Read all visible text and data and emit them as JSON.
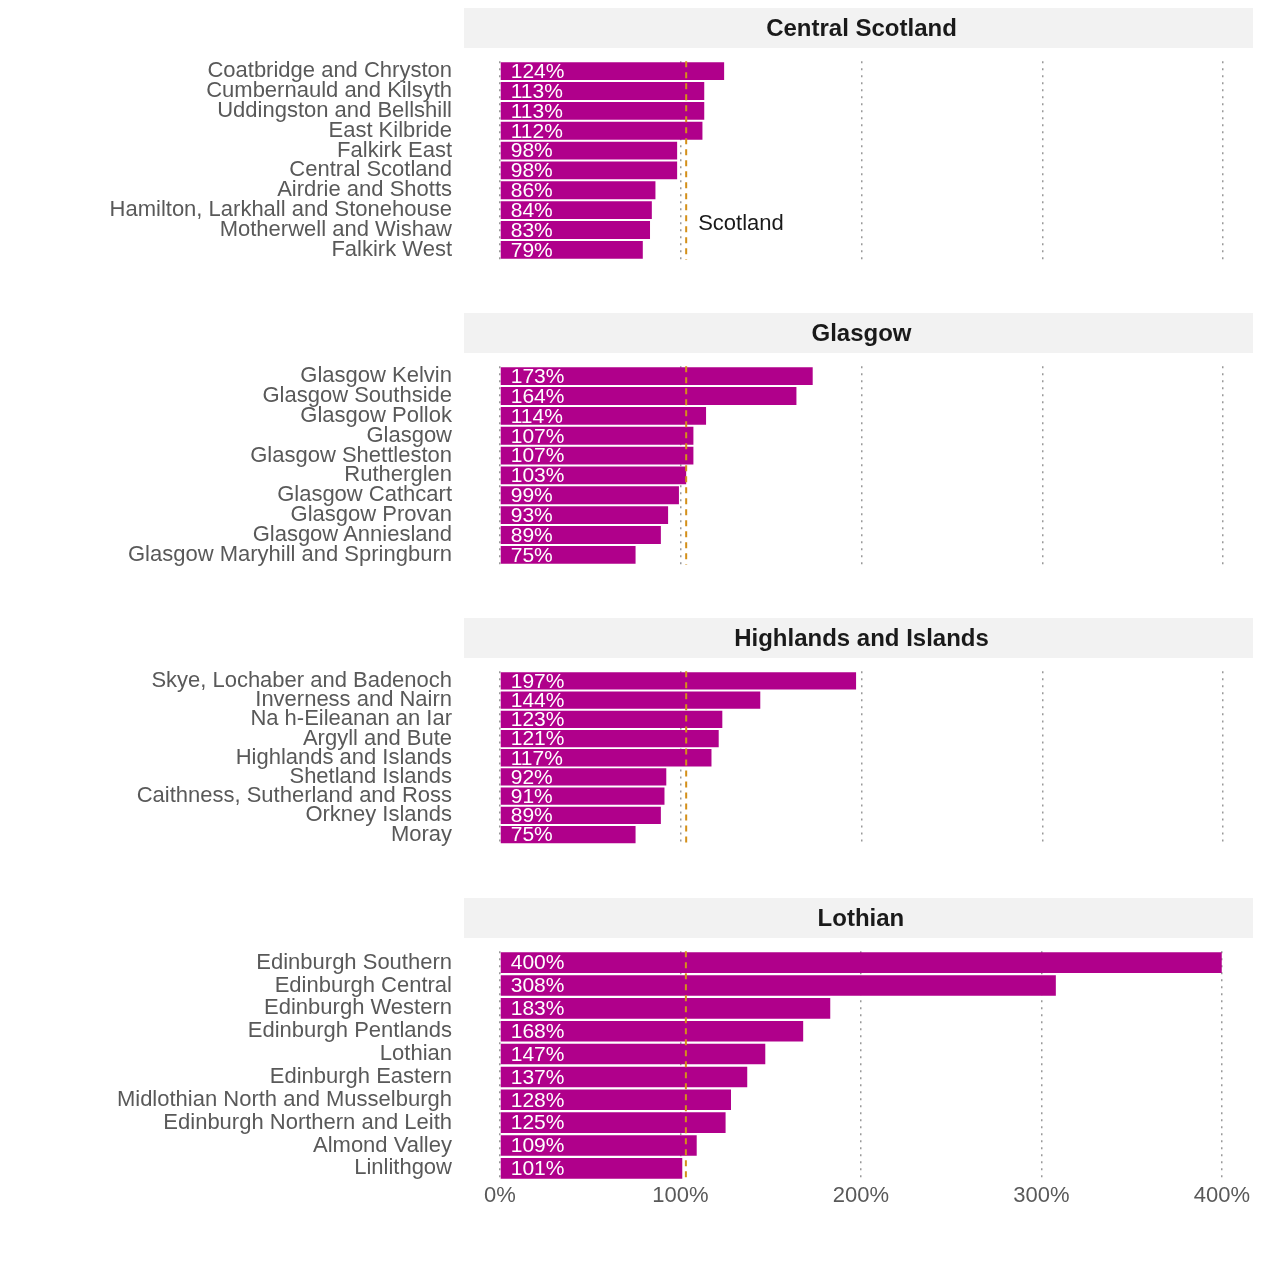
{
  "chart_data": [
    {
      "type": "bar",
      "orientation": "horizontal",
      "title": "Central Scotland",
      "categories": [
        "Coatbridge and Chryston",
        "Cumbernauld and Kilsyth",
        "Uddingston and Bellshill",
        "East Kilbride",
        "Falkirk East",
        "Central Scotland",
        "Airdrie and Shotts",
        "Hamilton, Larkhall and Stonehouse",
        "Motherwell and Wishaw",
        "Falkirk West"
      ],
      "values": [
        124,
        113,
        113,
        112,
        98,
        98,
        86,
        84,
        83,
        79
      ],
      "value_labels": [
        "124%",
        "113%",
        "113%",
        "112%",
        "98%",
        "98%",
        "86%",
        "84%",
        "83%",
        "79%"
      ],
      "color": "#b0008b",
      "xlim": [
        0,
        400
      ],
      "xticks": [
        0,
        100,
        200,
        300,
        400
      ],
      "grid": "x",
      "tick_labels": "y",
      "legend": false,
      "ref_lines": [
        {
          "axis": "x",
          "value": 103,
          "label": "Scotland",
          "color": "#d4901a",
          "line_style": "dashed"
        }
      ]
    },
    {
      "type": "bar",
      "orientation": "horizontal",
      "title": "Glasgow",
      "categories": [
        "Glasgow Kelvin",
        "Glasgow Southside",
        "Glasgow Pollok",
        "Glasgow",
        "Glasgow Shettleston",
        "Rutherglen",
        "Glasgow Cathcart",
        "Glasgow Provan",
        "Glasgow Anniesland",
        "Glasgow Maryhill and Springburn"
      ],
      "values": [
        173,
        164,
        114,
        107,
        107,
        103,
        99,
        93,
        89,
        75
      ],
      "value_labels": [
        "173%",
        "164%",
        "114%",
        "107%",
        "107%",
        "103%",
        "99%",
        "93%",
        "89%",
        "75%"
      ],
      "color": "#b0008b",
      "xlim": [
        0,
        400
      ],
      "xticks": [
        0,
        100,
        200,
        300,
        400
      ],
      "grid": "x",
      "tick_labels": "y",
      "legend": false,
      "ref_lines": [
        {
          "axis": "x",
          "value": 103,
          "color": "#d4901a",
          "line_style": "dashed"
        }
      ]
    },
    {
      "type": "bar",
      "orientation": "horizontal",
      "title": "Highlands and Islands",
      "categories": [
        "Skye, Lochaber and Badenoch",
        "Inverness and Nairn",
        "Na h-Eileanan an Iar",
        "Argyll and Bute",
        "Highlands and Islands",
        "Shetland Islands",
        "Caithness, Sutherland and Ross",
        "Orkney Islands",
        "Moray"
      ],
      "values": [
        197,
        144,
        123,
        121,
        117,
        92,
        91,
        89,
        75
      ],
      "value_labels": [
        "197%",
        "144%",
        "123%",
        "121%",
        "117%",
        "92%",
        "91%",
        "89%",
        "75%"
      ],
      "color": "#b0008b",
      "xlim": [
        0,
        400
      ],
      "xticks": [
        0,
        100,
        200,
        300,
        400
      ],
      "grid": "x",
      "tick_labels": "y",
      "legend": false,
      "ref_lines": [
        {
          "axis": "x",
          "value": 103,
          "color": "#d4901a",
          "line_style": "dashed"
        }
      ]
    },
    {
      "type": "bar",
      "orientation": "horizontal",
      "title": "Lothian",
      "categories": [
        "Edinburgh Southern",
        "Edinburgh Central",
        "Edinburgh Western",
        "Edinburgh Pentlands",
        "Lothian",
        "Edinburgh Eastern",
        "Midlothian North and Musselburgh",
        "Edinburgh Northern and Leith",
        "Almond Valley",
        "Linlithgow"
      ],
      "values": [
        400,
        308,
        183,
        168,
        147,
        137,
        128,
        125,
        109,
        101
      ],
      "value_labels": [
        "400%",
        "308%",
        "183%",
        "168%",
        "147%",
        "137%",
        "128%",
        "125%",
        "109%",
        "101%"
      ],
      "color": "#b0008b",
      "xlim": [
        0,
        400
      ],
      "xticks": [
        {
          "value": 0,
          "label": "0%"
        },
        {
          "value": 100,
          "label": "100%"
        },
        {
          "value": 200,
          "label": "200%"
        },
        {
          "value": 300,
          "label": "300%"
        },
        {
          "value": 400,
          "label": "400%"
        }
      ],
      "grid": "x",
      "legend": false,
      "ref_lines": [
        {
          "axis": "x",
          "value": 103,
          "color": "#d4901a",
          "line_style": "dashed"
        }
      ]
    }
  ]
}
